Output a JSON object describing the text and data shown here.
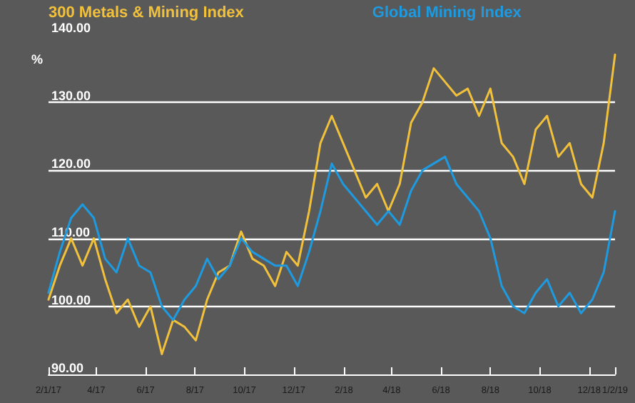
{
  "chart_data": {
    "type": "line",
    "ylabel": "%",
    "legend": "top",
    "grid": "y",
    "x": [
      "2017-02-01",
      "2017-02-15",
      "2017-03-01",
      "2017-03-15",
      "2017-03-29",
      "2017-04-12",
      "2017-04-26",
      "2017-05-10",
      "2017-05-24",
      "2017-06-07",
      "2017-06-21",
      "2017-07-05",
      "2017-07-19",
      "2017-08-02",
      "2017-08-16",
      "2017-08-30",
      "2017-09-13",
      "2017-09-27",
      "2017-10-11",
      "2017-10-25",
      "2017-11-08",
      "2017-11-22",
      "2017-12-06",
      "2017-12-20",
      "2018-01-03",
      "2018-01-17",
      "2018-01-31",
      "2018-02-14",
      "2018-02-28",
      "2018-03-14",
      "2018-03-28",
      "2018-04-11",
      "2018-04-25",
      "2018-05-09",
      "2018-05-23",
      "2018-06-06",
      "2018-06-20",
      "2018-07-04",
      "2018-07-18",
      "2018-08-01",
      "2018-08-15",
      "2018-08-29",
      "2018-09-12",
      "2018-09-26",
      "2018-10-10",
      "2018-10-24",
      "2018-11-07",
      "2018-11-21",
      "2018-12-05",
      "2018-12-19",
      "2019-01-02"
    ],
    "series": [
      {
        "name": "300 Metals & Mining Index",
        "color": "#f2c13c",
        "values": [
          101,
          106,
          110,
          106,
          110,
          104,
          99,
          101,
          97,
          100,
          93,
          98,
          97,
          95,
          101,
          105,
          106,
          111,
          107,
          106,
          103,
          108,
          106,
          114,
          124,
          128,
          124,
          120,
          116,
          118,
          114,
          118,
          127,
          130,
          135,
          133,
          131,
          132,
          128,
          132,
          124,
          122,
          118,
          126,
          128,
          122,
          124,
          118,
          116,
          124,
          137
        ]
      },
      {
        "name": "Global Mining Index",
        "color": "#1e9be0",
        "values": [
          102,
          108,
          113,
          115,
          113,
          107,
          105,
          110,
          106,
          105,
          100,
          98,
          101,
          103,
          107,
          104,
          106,
          110,
          108,
          107,
          106,
          106,
          103,
          108,
          114,
          121,
          118,
          116,
          114,
          112,
          114,
          112,
          117,
          120,
          121,
          122,
          118,
          116,
          114,
          110,
          103,
          100,
          99,
          102,
          104,
          100,
          102,
          99,
          101,
          105,
          114
        ]
      }
    ],
    "xlim": [
      "2017-02-01",
      "2019-01-02"
    ],
    "xticks": [
      {
        "value": "2017-02-01",
        "label": "2/1/17"
      },
      {
        "value": "2017-04-01",
        "label": "4/17"
      },
      {
        "value": "2017-06-01",
        "label": "6/17"
      },
      {
        "value": "2017-08-01",
        "label": "8/17"
      },
      {
        "value": "2017-10-01",
        "label": "10/17"
      },
      {
        "value": "2017-12-01",
        "label": "12/17"
      },
      {
        "value": "2018-02-01",
        "label": "2/18"
      },
      {
        "value": "2018-04-01",
        "label": "4/18"
      },
      {
        "value": "2018-06-01",
        "label": "6/18"
      },
      {
        "value": "2018-08-01",
        "label": "8/18"
      },
      {
        "value": "2018-10-01",
        "label": "10/18"
      },
      {
        "value": "2018-12-01",
        "label": "12/18"
      },
      {
        "value": "2019-01-02",
        "label": "1/2/19"
      }
    ],
    "ylim": [
      90,
      140
    ],
    "yticks": [
      {
        "value": 90,
        "label": "90.00"
      },
      {
        "value": 100,
        "label": "100.00"
      },
      {
        "value": 110,
        "label": "110.00"
      },
      {
        "value": 120,
        "label": "120.00"
      },
      {
        "value": 130,
        "label": "130.00"
      },
      {
        "value": 140,
        "label": "140.00"
      }
    ]
  }
}
